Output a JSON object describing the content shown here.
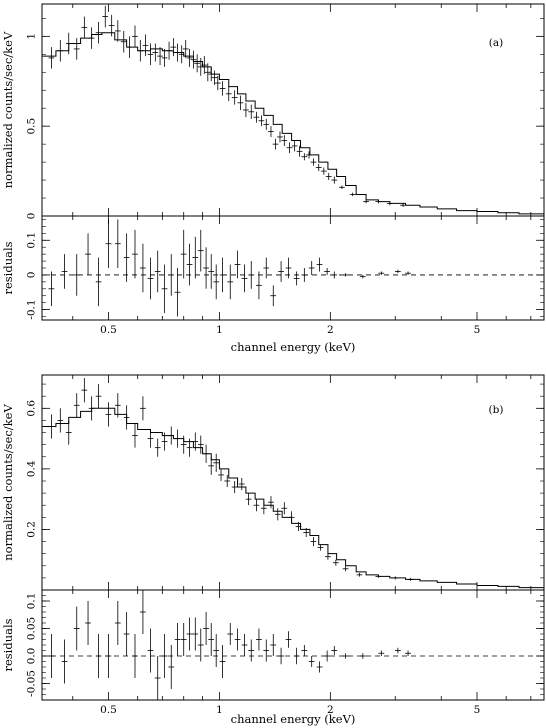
{
  "chart_data": [
    {
      "type": "line",
      "panel_tag": "(a)",
      "xscale": "log",
      "xlim": [
        0.33,
        7.6
      ],
      "xlabel": "channel energy (keV)",
      "x_ticks": [
        0.5,
        1,
        2,
        5
      ],
      "x_tick_labels": [
        "0.5",
        "1",
        "2",
        "5"
      ],
      "upper": {
        "ylabel": "normalized counts/sec/keV",
        "ylim": [
          0,
          1.18
        ],
        "y_ticks": [
          0,
          0.5,
          1
        ],
        "y_tick_labels": [
          "0",
          "0.5",
          "1"
        ],
        "data": {
          "x": [
            0.35,
            0.37,
            0.39,
            0.41,
            0.43,
            0.45,
            0.47,
            0.49,
            0.51,
            0.53,
            0.55,
            0.57,
            0.59,
            0.61,
            0.63,
            0.65,
            0.67,
            0.69,
            0.71,
            0.73,
            0.75,
            0.77,
            0.79,
            0.81,
            0.83,
            0.85,
            0.87,
            0.89,
            0.91,
            0.93,
            0.95,
            0.97,
            0.99,
            1.02,
            1.06,
            1.1,
            1.14,
            1.18,
            1.22,
            1.26,
            1.3,
            1.34,
            1.38,
            1.42,
            1.46,
            1.5,
            1.55,
            1.6,
            1.65,
            1.7,
            1.75,
            1.8,
            1.86,
            1.92,
            1.98,
            2.05,
            2.15,
            2.3,
            2.5,
            2.7,
            2.9,
            3.15
          ],
          "y": [
            0.88,
            0.92,
            0.96,
            0.93,
            1.05,
            0.99,
            1.02,
            1.11,
            1.06,
            1.03,
            0.97,
            0.94,
            1.0,
            0.92,
            0.95,
            0.9,
            0.91,
            0.89,
            0.88,
            0.92,
            0.94,
            0.91,
            0.9,
            0.93,
            0.88,
            0.87,
            0.85,
            0.83,
            0.84,
            0.8,
            0.79,
            0.77,
            0.74,
            0.71,
            0.68,
            0.66,
            0.63,
            0.59,
            0.58,
            0.55,
            0.53,
            0.51,
            0.47,
            0.4,
            0.44,
            0.42,
            0.38,
            0.39,
            0.36,
            0.33,
            0.34,
            0.3,
            0.27,
            0.25,
            0.22,
            0.2,
            0.16,
            0.12,
            0.08,
            0.08,
            0.07,
            0.06
          ],
          "yerr": [
            0.06,
            0.06,
            0.06,
            0.06,
            0.06,
            0.06,
            0.06,
            0.06,
            0.06,
            0.06,
            0.06,
            0.06,
            0.06,
            0.06,
            0.06,
            0.06,
            0.05,
            0.05,
            0.05,
            0.05,
            0.05,
            0.05,
            0.05,
            0.05,
            0.05,
            0.05,
            0.05,
            0.05,
            0.05,
            0.05,
            0.04,
            0.04,
            0.04,
            0.04,
            0.04,
            0.04,
            0.04,
            0.04,
            0.04,
            0.03,
            0.03,
            0.03,
            0.03,
            0.03,
            0.03,
            0.03,
            0.03,
            0.03,
            0.03,
            0.02,
            0.02,
            0.02,
            0.02,
            0.02,
            0.02,
            0.02,
            0.01,
            0.01,
            0.01,
            0.01,
            0.01,
            0.01
          ]
        },
        "model": {
          "x": [
            0.33,
            0.36,
            0.39,
            0.42,
            0.45,
            0.48,
            0.52,
            0.56,
            0.6,
            0.65,
            0.7,
            0.75,
            0.8,
            0.85,
            0.9,
            0.95,
            1.0,
            1.06,
            1.12,
            1.18,
            1.25,
            1.32,
            1.4,
            1.48,
            1.57,
            1.66,
            1.76,
            1.86,
            1.97,
            2.08,
            2.2,
            2.35,
            2.5,
            2.7,
            2.9,
            3.2,
            3.5,
            3.9,
            4.4,
            5.0,
            5.7,
            6.5,
            7.6
          ],
          "y": [
            0.89,
            0.92,
            0.96,
            0.99,
            1.01,
            1.02,
            0.98,
            0.94,
            0.92,
            0.93,
            0.92,
            0.91,
            0.89,
            0.86,
            0.83,
            0.79,
            0.76,
            0.72,
            0.68,
            0.64,
            0.6,
            0.56,
            0.51,
            0.46,
            0.42,
            0.38,
            0.34,
            0.3,
            0.26,
            0.22,
            0.17,
            0.12,
            0.09,
            0.08,
            0.07,
            0.06,
            0.05,
            0.04,
            0.03,
            0.025,
            0.018,
            0.012,
            0.008
          ]
        }
      },
      "lower": {
        "ylabel": "residuals",
        "ylim": [
          -0.13,
          0.17
        ],
        "y_ticks": [
          -0.1,
          0,
          0.1
        ],
        "y_tick_labels": [
          "-0.1",
          "0",
          "0.1"
        ],
        "data": {
          "x": [
            0.35,
            0.38,
            0.41,
            0.44,
            0.47,
            0.5,
            0.53,
            0.56,
            0.59,
            0.62,
            0.65,
            0.68,
            0.71,
            0.74,
            0.77,
            0.8,
            0.83,
            0.86,
            0.89,
            0.92,
            0.95,
            0.98,
            1.02,
            1.07,
            1.12,
            1.17,
            1.22,
            1.28,
            1.34,
            1.4,
            1.47,
            1.54,
            1.62,
            1.7,
            1.78,
            1.87,
            1.96,
            2.05,
            2.2,
            2.45,
            2.75,
            3.05,
            3.25
          ],
          "y": [
            -0.04,
            0.01,
            0.0,
            0.06,
            -0.02,
            0.09,
            0.09,
            0.05,
            0.06,
            0.02,
            -0.01,
            0.01,
            -0.04,
            0.0,
            -0.05,
            0.06,
            0.03,
            0.05,
            0.07,
            0.02,
            0.01,
            -0.02,
            0.0,
            -0.02,
            0.03,
            -0.01,
            0.0,
            -0.03,
            0.02,
            -0.06,
            0.01,
            0.02,
            -0.01,
            0.0,
            0.02,
            0.03,
            0.01,
            0.0,
            0.0,
            -0.005,
            0.005,
            0.01,
            0.005
          ],
          "yerr": [
            0.05,
            0.05,
            0.06,
            0.06,
            0.07,
            0.07,
            0.07,
            0.07,
            0.07,
            0.07,
            0.06,
            0.06,
            0.07,
            0.06,
            0.07,
            0.07,
            0.06,
            0.06,
            0.06,
            0.06,
            0.05,
            0.05,
            0.05,
            0.05,
            0.04,
            0.04,
            0.04,
            0.04,
            0.03,
            0.03,
            0.03,
            0.03,
            0.02,
            0.02,
            0.02,
            0.02,
            0.01,
            0.01,
            0.005,
            0.005,
            0.005,
            0.005,
            0.005
          ]
        }
      }
    },
    {
      "type": "line",
      "panel_tag": "(b)",
      "xscale": "log",
      "xlim": [
        0.33,
        7.6
      ],
      "xlabel": "channel energy (keV)",
      "x_ticks": [
        0.5,
        1,
        2,
        5
      ],
      "x_tick_labels": [
        "0.5",
        "1",
        "2",
        "5"
      ],
      "upper": {
        "ylabel": "normalized counts/sec/keV",
        "ylim": [
          0,
          0.71
        ],
        "y_ticks": [
          0.2,
          0.4,
          0.6
        ],
        "y_tick_labels": [
          "0.2",
          "0.4",
          "0.6"
        ],
        "data": {
          "x": [
            0.35,
            0.37,
            0.39,
            0.41,
            0.43,
            0.45,
            0.47,
            0.5,
            0.53,
            0.56,
            0.59,
            0.62,
            0.65,
            0.68,
            0.71,
            0.74,
            0.77,
            0.8,
            0.83,
            0.86,
            0.89,
            0.92,
            0.95,
            0.98,
            1.01,
            1.05,
            1.1,
            1.15,
            1.2,
            1.26,
            1.32,
            1.38,
            1.44,
            1.5,
            1.57,
            1.64,
            1.72,
            1.8,
            1.88,
            1.97,
            2.07,
            2.2,
            2.4,
            2.7,
            3.0,
            3.3
          ],
          "y": [
            0.54,
            0.56,
            0.52,
            0.61,
            0.66,
            0.6,
            0.64,
            0.58,
            0.61,
            0.57,
            0.51,
            0.6,
            0.5,
            0.47,
            0.49,
            0.51,
            0.5,
            0.48,
            0.47,
            0.49,
            0.48,
            0.45,
            0.41,
            0.42,
            0.38,
            0.36,
            0.34,
            0.35,
            0.3,
            0.28,
            0.27,
            0.29,
            0.25,
            0.27,
            0.24,
            0.21,
            0.19,
            0.16,
            0.14,
            0.11,
            0.09,
            0.07,
            0.05,
            0.045,
            0.04,
            0.035
          ],
          "yerr": [
            0.04,
            0.04,
            0.04,
            0.04,
            0.04,
            0.04,
            0.04,
            0.04,
            0.04,
            0.04,
            0.04,
            0.04,
            0.03,
            0.03,
            0.03,
            0.03,
            0.03,
            0.03,
            0.03,
            0.03,
            0.03,
            0.03,
            0.03,
            0.03,
            0.02,
            0.02,
            0.02,
            0.02,
            0.02,
            0.02,
            0.02,
            0.02,
            0.02,
            0.02,
            0.02,
            0.015,
            0.015,
            0.015,
            0.01,
            0.01,
            0.01,
            0.008,
            0.006,
            0.005,
            0.005,
            0.005
          ]
        },
        "model": {
          "x": [
            0.33,
            0.36,
            0.39,
            0.42,
            0.45,
            0.48,
            0.52,
            0.56,
            0.6,
            0.65,
            0.7,
            0.75,
            0.8,
            0.85,
            0.9,
            0.95,
            1.0,
            1.06,
            1.12,
            1.18,
            1.25,
            1.32,
            1.4,
            1.48,
            1.57,
            1.66,
            1.76,
            1.86,
            1.97,
            2.08,
            2.2,
            2.35,
            2.5,
            2.7,
            2.9,
            3.2,
            3.5,
            3.9,
            4.4,
            5.0,
            5.7,
            6.5,
            7.6
          ],
          "y": [
            0.54,
            0.55,
            0.57,
            0.59,
            0.6,
            0.6,
            0.58,
            0.55,
            0.53,
            0.52,
            0.51,
            0.5,
            0.49,
            0.47,
            0.45,
            0.43,
            0.4,
            0.37,
            0.34,
            0.32,
            0.3,
            0.28,
            0.26,
            0.24,
            0.22,
            0.2,
            0.18,
            0.15,
            0.12,
            0.1,
            0.08,
            0.06,
            0.05,
            0.045,
            0.04,
            0.035,
            0.03,
            0.025,
            0.02,
            0.015,
            0.012,
            0.008,
            0.005
          ]
        }
      },
      "lower": {
        "ylabel": "residuals",
        "ylim": [
          -0.08,
          0.12
        ],
        "y_ticks": [
          -0.05,
          0,
          0.05,
          0.1
        ],
        "y_tick_labels": [
          "-0.05",
          "0.0",
          "0.05",
          "0.1"
        ],
        "data": {
          "x": [
            0.35,
            0.38,
            0.41,
            0.44,
            0.47,
            0.5,
            0.53,
            0.56,
            0.59,
            0.62,
            0.65,
            0.68,
            0.71,
            0.74,
            0.77,
            0.8,
            0.83,
            0.86,
            0.89,
            0.92,
            0.95,
            0.98,
            1.02,
            1.07,
            1.12,
            1.17,
            1.22,
            1.28,
            1.34,
            1.4,
            1.47,
            1.54,
            1.62,
            1.7,
            1.78,
            1.87,
            1.96,
            2.05,
            2.2,
            2.45,
            2.75,
            3.05,
            3.25
          ],
          "y": [
            0.0,
            -0.01,
            0.05,
            0.06,
            0.0,
            0.0,
            0.06,
            0.04,
            0.0,
            0.08,
            0.01,
            -0.04,
            0.0,
            -0.02,
            0.03,
            0.03,
            0.04,
            0.04,
            0.02,
            0.05,
            0.03,
            0.01,
            -0.01,
            0.04,
            0.03,
            0.02,
            0.01,
            0.03,
            0.01,
            0.02,
            0.0,
            0.03,
            0.0,
            0.01,
            -0.01,
            -0.02,
            0.0,
            0.01,
            0.0,
            0.0,
            0.005,
            0.01,
            0.005
          ],
          "yerr": [
            0.04,
            0.04,
            0.04,
            0.04,
            0.04,
            0.04,
            0.04,
            0.04,
            0.04,
            0.04,
            0.04,
            0.04,
            0.04,
            0.04,
            0.03,
            0.03,
            0.03,
            0.03,
            0.03,
            0.03,
            0.03,
            0.03,
            0.03,
            0.02,
            0.02,
            0.02,
            0.02,
            0.02,
            0.02,
            0.02,
            0.015,
            0.015,
            0.015,
            0.01,
            0.01,
            0.01,
            0.01,
            0.008,
            0.005,
            0.005,
            0.005,
            0.005,
            0.005
          ]
        }
      }
    }
  ]
}
